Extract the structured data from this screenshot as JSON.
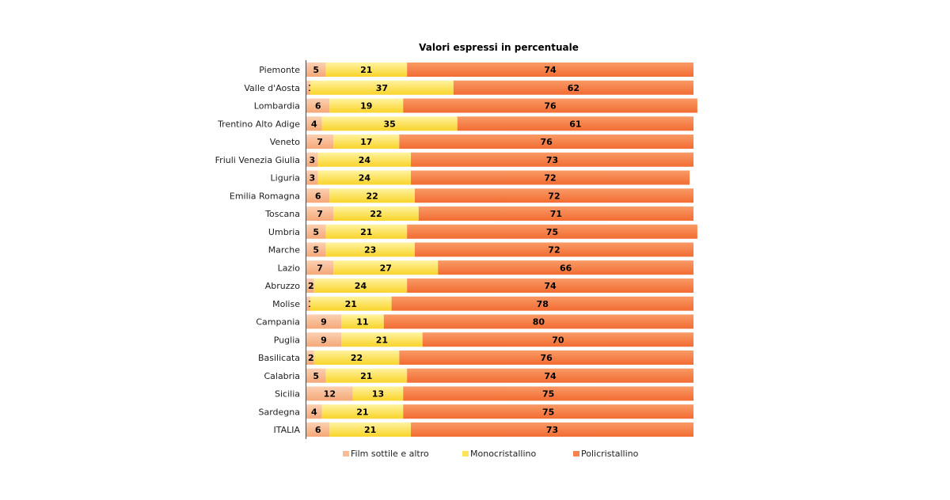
{
  "chart_data": {
    "type": "bar",
    "orientation": "horizontal",
    "stacked": true,
    "title": "Valori espressi in percentuale",
    "categories": [
      "Piemonte",
      "Valle d'Aosta",
      "Lombardia",
      "Trentino Alto Adige",
      "Veneto",
      "Friuli Venezia Giulia",
      "Liguria",
      "Emilia Romagna",
      "Toscana",
      "Umbria",
      "Marche",
      "Lazio",
      "Abruzzo",
      "Molise",
      "Campania",
      "Puglia",
      "Basilicata",
      "Calabria",
      "Sicilia",
      "Sardegna",
      "ITALIA"
    ],
    "series": [
      {
        "name": "Film sottile e altro",
        "color": "#f9bc94",
        "values": [
          5,
          1,
          6,
          4,
          7,
          3,
          3,
          6,
          7,
          5,
          5,
          7,
          2,
          1,
          9,
          9,
          2,
          5,
          12,
          4,
          6
        ]
      },
      {
        "name": "Monocristallino",
        "color": "#fde35c",
        "values": [
          21,
          37,
          19,
          35,
          17,
          24,
          24,
          22,
          22,
          21,
          23,
          27,
          24,
          21,
          11,
          21,
          22,
          21,
          13,
          21,
          21
        ]
      },
      {
        "name": "Policristallino",
        "color": "#f6814a",
        "values": [
          74,
          62,
          76,
          61,
          76,
          73,
          72,
          72,
          71,
          75,
          72,
          66,
          74,
          78,
          80,
          70,
          76,
          74,
          75,
          75,
          73
        ]
      }
    ],
    "xlim": [
      0,
      100
    ],
    "grid": false,
    "legend": "bottom"
  }
}
